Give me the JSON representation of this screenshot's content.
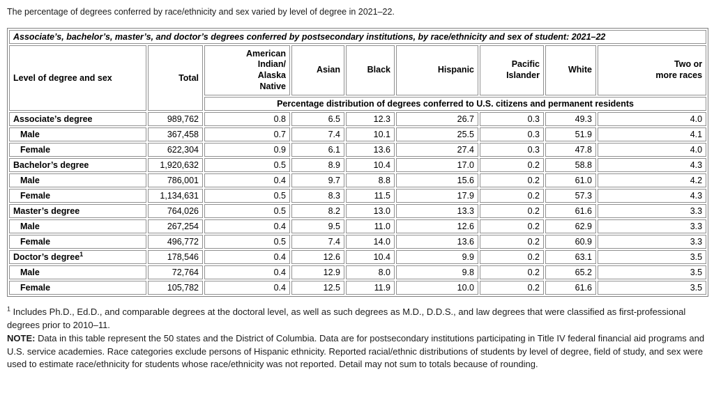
{
  "intro": "The percentage of degrees conferred by race/ethnicity and sex varied by level of degree in 2021–22.",
  "table": {
    "title": "Associate’s, bachelor’s, master’s, and doctor’s degrees conferred by postsecondary institutions, by race/ethnicity and sex of student: 2021–22",
    "col1_header": "Level of degree and sex",
    "col2_header": "Total",
    "race_headers": [
      "American\nIndian/\nAlaska\nNative",
      "Asian",
      "Black",
      "Hispanic",
      "Pacific\nIslander",
      "White",
      "Two or\nmore races"
    ],
    "subheader": "Percentage distribution of degrees conferred to U.S. citizens and permanent residents",
    "rows": [
      {
        "label": "Associate’s degree",
        "sup": "",
        "indent": false,
        "total": "989,762",
        "values": [
          "0.8",
          "6.5",
          "12.3",
          "26.7",
          "0.3",
          "49.3",
          "4.0"
        ]
      },
      {
        "label": "Male",
        "sup": "",
        "indent": true,
        "total": "367,458",
        "values": [
          "0.7",
          "7.4",
          "10.1",
          "25.5",
          "0.3",
          "51.9",
          "4.1"
        ]
      },
      {
        "label": "Female",
        "sup": "",
        "indent": true,
        "total": "622,304",
        "values": [
          "0.9",
          "6.1",
          "13.6",
          "27.4",
          "0.3",
          "47.8",
          "4.0"
        ]
      },
      {
        "label": "Bachelor’s degree",
        "sup": "",
        "indent": false,
        "total": "1,920,632",
        "values": [
          "0.5",
          "8.9",
          "10.4",
          "17.0",
          "0.2",
          "58.8",
          "4.3"
        ]
      },
      {
        "label": "Male",
        "sup": "",
        "indent": true,
        "total": "786,001",
        "values": [
          "0.4",
          "9.7",
          "8.8",
          "15.6",
          "0.2",
          "61.0",
          "4.2"
        ]
      },
      {
        "label": "Female",
        "sup": "",
        "indent": true,
        "total": "1,134,631",
        "values": [
          "0.5",
          "8.3",
          "11.5",
          "17.9",
          "0.2",
          "57.3",
          "4.3"
        ]
      },
      {
        "label": "Master’s degree",
        "sup": "",
        "indent": false,
        "total": "764,026",
        "values": [
          "0.5",
          "8.2",
          "13.0",
          "13.3",
          "0.2",
          "61.6",
          "3.3"
        ]
      },
      {
        "label": "Male",
        "sup": "",
        "indent": true,
        "total": "267,254",
        "values": [
          "0.4",
          "9.5",
          "11.0",
          "12.6",
          "0.2",
          "62.9",
          "3.3"
        ]
      },
      {
        "label": "Female",
        "sup": "",
        "indent": true,
        "total": "496,772",
        "values": [
          "0.5",
          "7.4",
          "14.0",
          "13.6",
          "0.2",
          "60.9",
          "3.3"
        ]
      },
      {
        "label": "Doctor’s degree",
        "sup": "1",
        "indent": false,
        "total": "178,546",
        "values": [
          "0.4",
          "12.6",
          "10.4",
          "9.9",
          "0.2",
          "63.1",
          "3.5"
        ]
      },
      {
        "label": "Male",
        "sup": "",
        "indent": true,
        "total": "72,764",
        "values": [
          "0.4",
          "12.9",
          "8.0",
          "9.8",
          "0.2",
          "65.2",
          "3.5"
        ]
      },
      {
        "label": "Female",
        "sup": "",
        "indent": true,
        "total": "105,782",
        "values": [
          "0.4",
          "12.5",
          "11.9",
          "10.0",
          "0.2",
          "61.6",
          "3.5"
        ]
      }
    ]
  },
  "footnotes": {
    "fn1_sup": "1",
    "fn1_text": " Includes Ph.D., Ed.D., and comparable degrees at the doctoral level, as well as such degrees as M.D., D.D.S., and law degrees that were classified as first-professional degrees prior to 2010–11.",
    "note_label": "NOTE:",
    "note_text": " Data in this table represent the 50 states and the District of Columbia. Data are for postsecondary institutions participating in Title IV federal financial aid programs and U.S. service academies. Race categories exclude persons of Hispanic ethnicity. Reported racial/ethnic distributions of students by level of degree, field of study, and sex were used to estimate race/ethnicity for students whose race/ethnicity was not reported. Detail may not sum to totals because of rounding."
  }
}
